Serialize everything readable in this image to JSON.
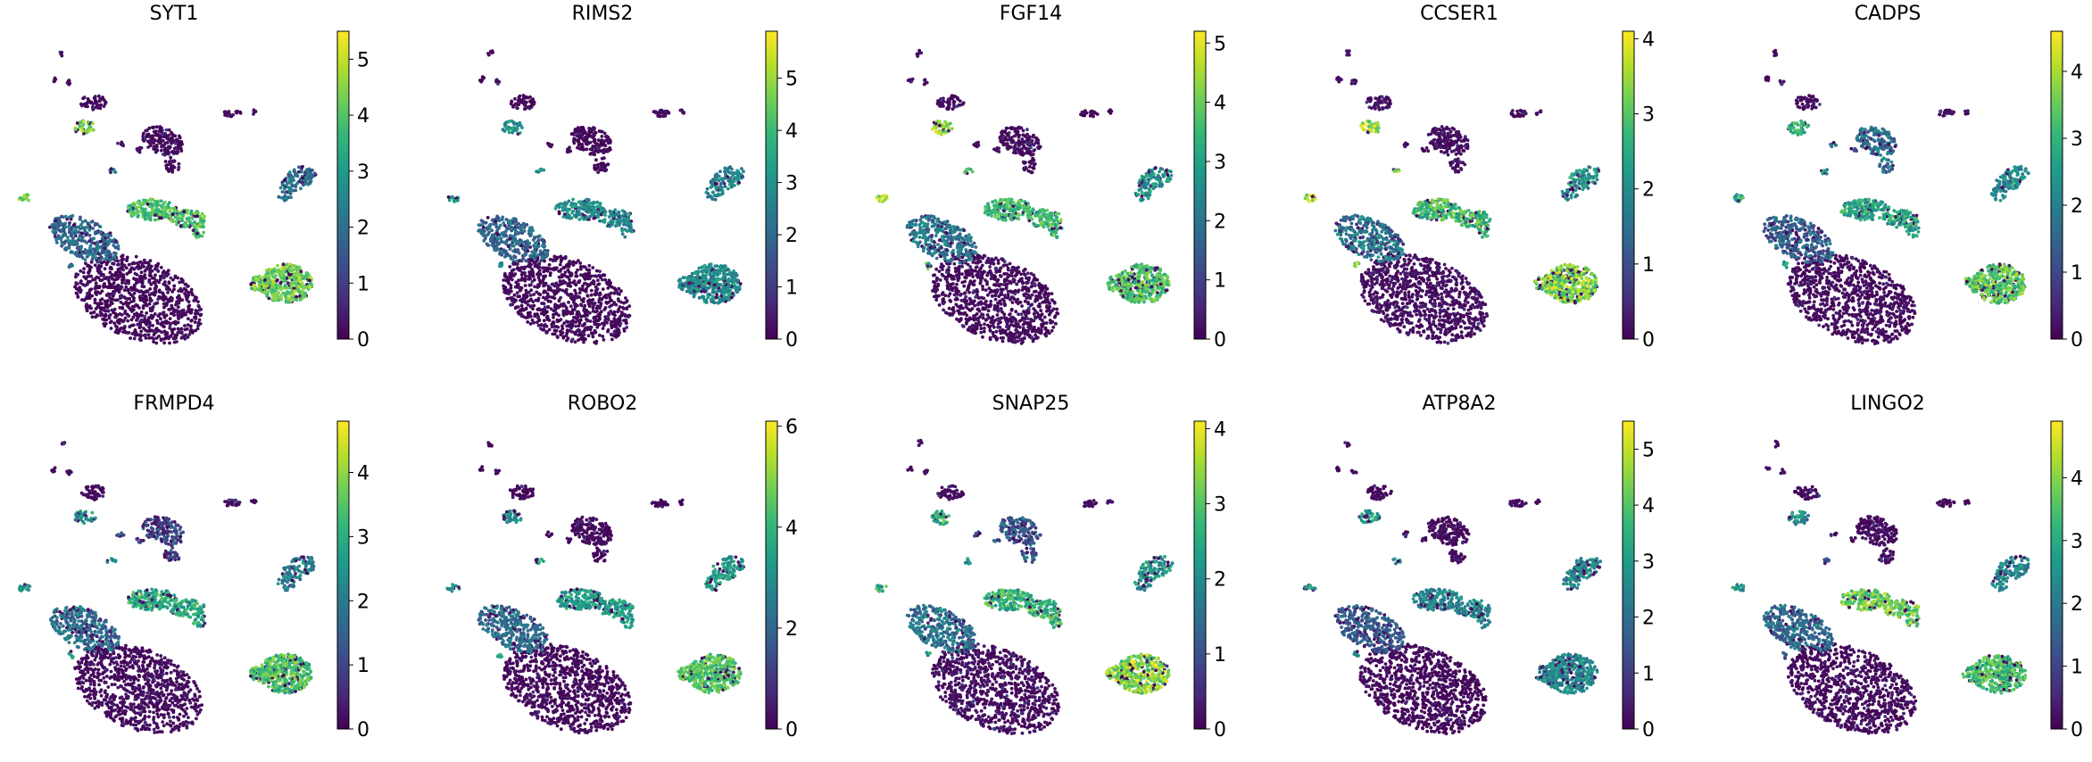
{
  "colormap": [
    "#440154",
    "#482878",
    "#3e4a89",
    "#31688e",
    "#26828e",
    "#1f9e89",
    "#35b779",
    "#6ece58",
    "#b5de2b",
    "#fde725"
  ],
  "chart_data": [
    {
      "type": "scatter",
      "title": "SYT1",
      "vmax": 5.5,
      "ticks": [
        0,
        1,
        2,
        3,
        4,
        5
      ],
      "cluster_levels": {
        "neuron_big": 0.1,
        "neuron_bulb": 1.9,
        "upper_right_mid": 0.4,
        "right_blob": 4.3,
        "mid_group": 3.9,
        "small_right": 0.5,
        "small_left": 4.5,
        "top_small": 0.6,
        "left_lobe": 2.1,
        "upper_mid": 2.3
      }
    },
    {
      "type": "scatter",
      "title": "RIMS2",
      "vmax": 5.9,
      "ticks": [
        0,
        1,
        2,
        3,
        4,
        5
      ],
      "cluster_levels": {
        "neuron_big": 0.1,
        "neuron_bulb": 2.0,
        "upper_right_mid": 0.3,
        "right_blob": 2.9,
        "mid_group": 2.9,
        "small_right": 0.3,
        "small_left": 3.0,
        "top_small": 0.4,
        "left_lobe": 2.7,
        "upper_mid": 2.9
      }
    },
    {
      "type": "scatter",
      "title": "FGF14",
      "vmax": 5.2,
      "ticks": [
        0,
        1,
        2,
        3,
        4,
        5
      ],
      "cluster_levels": {
        "neuron_big": 0.2,
        "neuron_bulb": 2.1,
        "upper_right_mid": 0.6,
        "right_blob": 3.7,
        "mid_group": 3.6,
        "small_right": 0.4,
        "small_left": 4.4,
        "top_small": 0.5,
        "left_lobe": 2.7,
        "upper_mid": 3.7
      }
    },
    {
      "type": "scatter",
      "title": "CCSER1",
      "vmax": 4.1,
      "ticks": [
        0,
        1,
        2,
        3,
        4
      ],
      "cluster_levels": {
        "neuron_big": 0.1,
        "neuron_bulb": 1.6,
        "upper_right_mid": 0.2,
        "right_blob": 3.3,
        "mid_group": 2.8,
        "small_right": 0.3,
        "small_left": 3.5,
        "top_small": 0.5,
        "left_lobe": 2.1,
        "upper_mid": 3.3
      }
    },
    {
      "type": "scatter",
      "title": "CADPS",
      "vmax": 4.6,
      "ticks": [
        0,
        1,
        2,
        3,
        4
      ],
      "cluster_levels": {
        "neuron_big": 0.1,
        "neuron_bulb": 1.4,
        "upper_right_mid": 1.6,
        "right_blob": 3.4,
        "mid_group": 2.7,
        "small_right": 0.4,
        "small_left": 2.8,
        "top_small": 0.4,
        "left_lobe": 2.2,
        "upper_mid": 2.6
      }
    },
    {
      "type": "scatter",
      "title": "FRMPD4",
      "vmax": 4.8,
      "ticks": [
        0,
        1,
        2,
        3,
        4
      ],
      "cluster_levels": {
        "neuron_big": 0.1,
        "neuron_bulb": 1.8,
        "upper_right_mid": 1.0,
        "right_blob": 3.4,
        "mid_group": 2.9,
        "small_right": 0.5,
        "small_left": 2.5,
        "top_small": 0.5,
        "left_lobe": 2.1,
        "upper_mid": 2.6
      }
    },
    {
      "type": "scatter",
      "title": "ROBO2",
      "vmax": 6.1,
      "ticks": [
        0,
        2,
        4,
        6
      ],
      "cluster_levels": {
        "neuron_big": 0.2,
        "neuron_bulb": 2.2,
        "upper_right_mid": 0.6,
        "right_blob": 4.4,
        "mid_group": 3.4,
        "small_right": 0.5,
        "small_left": 3.0,
        "top_small": 0.5,
        "left_lobe": 3.3,
        "upper_mid": 3.5
      }
    },
    {
      "type": "scatter",
      "title": "SNAP25",
      "vmax": 4.1,
      "ticks": [
        0,
        1,
        2,
        3,
        4
      ],
      "cluster_levels": {
        "neuron_big": 0.3,
        "neuron_bulb": 1.6,
        "upper_right_mid": 1.2,
        "right_blob": 3.4,
        "mid_group": 2.6,
        "small_right": 0.4,
        "small_left": 2.6,
        "top_small": 0.4,
        "left_lobe": 2.2,
        "upper_mid": 2.2
      }
    },
    {
      "type": "scatter",
      "title": "ATP8A2",
      "vmax": 5.5,
      "ticks": [
        0,
        1,
        2,
        3,
        4,
        5
      ],
      "cluster_levels": {
        "neuron_big": 0.1,
        "neuron_bulb": 1.6,
        "upper_right_mid": 0.3,
        "right_blob": 2.6,
        "mid_group": 2.6,
        "small_right": 0.3,
        "small_left": 3.0,
        "top_small": 0.4,
        "left_lobe": 2.5,
        "upper_mid": 2.6
      }
    },
    {
      "type": "scatter",
      "title": "LINGO2",
      "vmax": 4.9,
      "ticks": [
        0,
        1,
        2,
        3,
        4
      ],
      "cluster_levels": {
        "neuron_big": 0.1,
        "neuron_bulb": 1.7,
        "upper_right_mid": 0.4,
        "right_blob": 3.4,
        "mid_group": 3.8,
        "small_right": 0.3,
        "small_left": 2.5,
        "top_small": 0.4,
        "left_lobe": 2.2,
        "upper_mid": 1.2
      }
    }
  ]
}
